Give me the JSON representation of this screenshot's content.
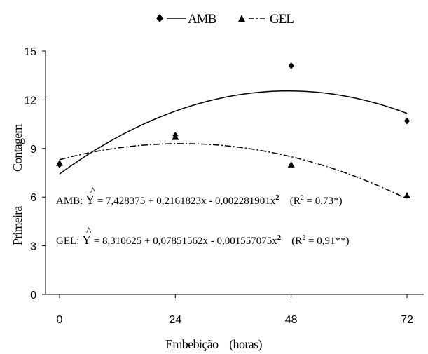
{
  "chart_data": {
    "type": "scatter",
    "xlabel": "Embebição    (horas)",
    "ylabel_parts": [
      "Primeira",
      "Contagem"
    ],
    "xlim": [
      0,
      72
    ],
    "ylim": [
      0,
      15
    ],
    "x_ticks": [
      "0",
      "24",
      "48",
      "72"
    ],
    "y_ticks": [
      "0",
      "3",
      "6",
      "9",
      "12",
      "15"
    ],
    "grid": false,
    "legend_position": "top-center",
    "series": [
      {
        "name": "AMB",
        "marker": "diamond",
        "line_style": "solid",
        "points": [
          [
            0,
            8.0
          ],
          [
            24,
            9.8
          ],
          [
            48,
            14.1
          ],
          [
            72,
            10.7
          ]
        ],
        "fit": {
          "intercept": 7.428375,
          "linear": 0.2161823,
          "quadratic": -0.002281901
        },
        "equation_prefix": "AMB: ",
        "equation_text": " = 7,428375 + 0,2161823x - 0,002281901x",
        "r2_text": "(R",
        "r2_value": " = 0,73*)"
      },
      {
        "name": "GEL",
        "marker": "triangle",
        "line_style": "dash-dot",
        "points": [
          [
            0,
            8.1
          ],
          [
            24,
            9.7
          ],
          [
            48,
            8.0
          ],
          [
            72,
            6.1
          ]
        ],
        "fit": {
          "intercept": 8.310625,
          "linear": 0.07851562,
          "quadratic": -0.001557075
        },
        "equation_prefix": "GEL: ",
        "equation_text": " = 8,310625 + 0,07851562x - 0,001557075x",
        "r2_text": "(R",
        "r2_value": " = 0,91**)"
      }
    ],
    "y_hat_symbol": "Y",
    "hat_symbol": "^",
    "superscript_2": "2"
  }
}
